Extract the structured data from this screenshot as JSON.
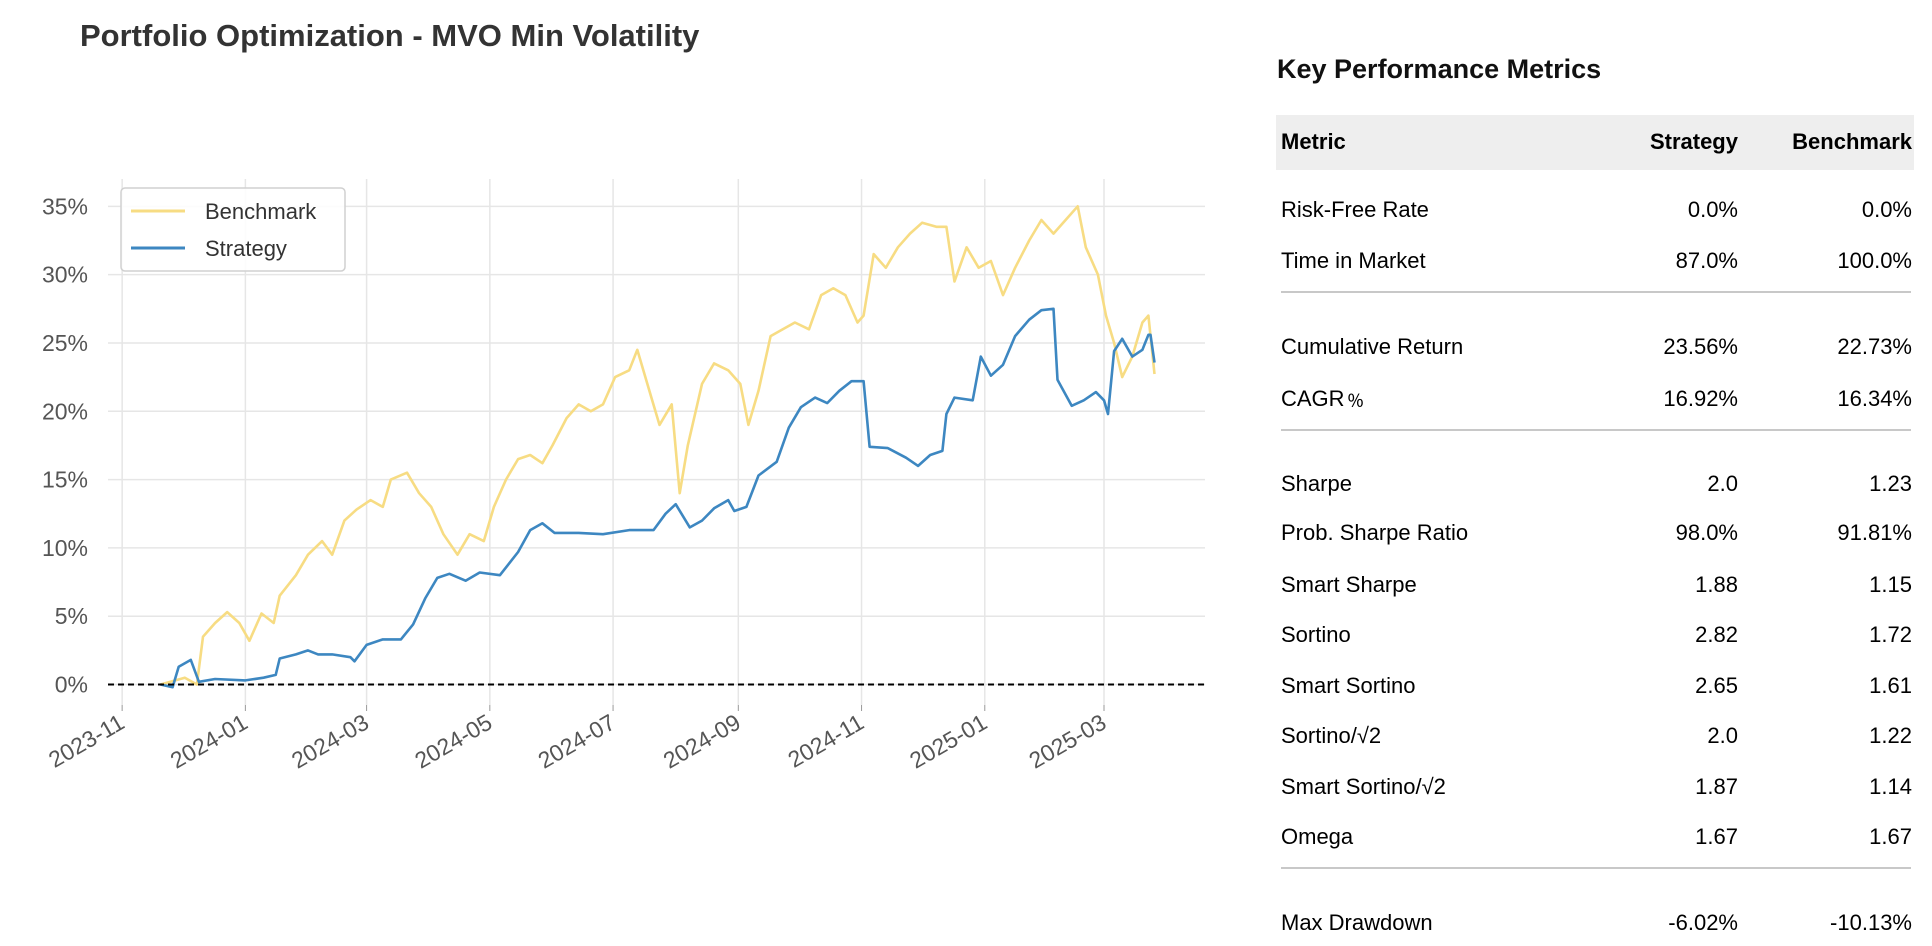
{
  "title": "Portfolio Optimization - MVO Min Volatility",
  "metrics": {
    "title": "Key Performance Metrics",
    "columns": [
      "Metric",
      "Strategy",
      "Benchmark"
    ],
    "groups": [
      [
        [
          "Risk-Free Rate",
          "0.0%",
          "0.0%"
        ],
        [
          "Time in Market",
          "87.0%",
          "100.0%"
        ]
      ],
      [
        [
          "Cumulative Return",
          "23.56%",
          "22.73%"
        ],
        [
          "CAGR﹪",
          "16.92%",
          "16.34%"
        ]
      ],
      [
        [
          "Sharpe",
          "2.0",
          "1.23"
        ],
        [
          "Prob. Sharpe Ratio",
          "98.0%",
          "91.81%"
        ],
        [
          "Smart Sharpe",
          "1.88",
          "1.15"
        ],
        [
          "Sortino",
          "2.82",
          "1.72"
        ],
        [
          "Smart Sortino",
          "2.65",
          "1.61"
        ],
        [
          "Sortino/√2",
          "2.0",
          "1.22"
        ],
        [
          "Smart Sortino/√2",
          "1.87",
          "1.14"
        ],
        [
          "Omega",
          "1.67",
          "1.67"
        ]
      ],
      [
        [
          "Max Drawdown",
          "-6.02%",
          "-10.13%"
        ]
      ]
    ]
  },
  "chart_data": {
    "type": "line",
    "title": "Portfolio Optimization - MVO Min Volatility",
    "xlabel": "",
    "ylabel": "",
    "x_ticks": [
      "2023-11",
      "2024-01",
      "2024-03",
      "2024-05",
      "2024-07",
      "2024-09",
      "2024-11",
      "2025-01",
      "2025-03"
    ],
    "y_ticks": [
      "0%",
      "5%",
      "10%",
      "15%",
      "20%",
      "25%",
      "30%",
      "35%"
    ],
    "y_tick_values": [
      0,
      5,
      10,
      15,
      20,
      25,
      30,
      35
    ],
    "xlim": [
      "2023-10-25",
      "2025-04-20"
    ],
    "ylim": [
      -1.5,
      37
    ],
    "grid": true,
    "legend": "top-left",
    "reference_line": {
      "y": 0,
      "style": "dashed",
      "color": "#000000"
    },
    "series": [
      {
        "name": "Benchmark",
        "color": "#f7dc83",
        "points": [
          [
            "2023-11-20",
            0
          ],
          [
            "2023-12-02",
            0.5
          ],
          [
            "2023-12-08",
            0
          ],
          [
            "2023-12-11",
            3.5
          ],
          [
            "2023-12-17",
            4.5
          ],
          [
            "2023-12-23",
            5.3
          ],
          [
            "2023-12-29",
            4.5
          ],
          [
            "2024-01-03",
            3.2
          ],
          [
            "2024-01-09",
            5.2
          ],
          [
            "2024-01-15",
            4.5
          ],
          [
            "2024-01-18",
            6.5
          ],
          [
            "2024-01-26",
            8
          ],
          [
            "2024-02-01",
            9.5
          ],
          [
            "2024-02-08",
            10.5
          ],
          [
            "2024-02-13",
            9.5
          ],
          [
            "2024-02-19",
            12
          ],
          [
            "2024-02-25",
            12.8
          ],
          [
            "2024-03-03",
            13.5
          ],
          [
            "2024-03-09",
            13
          ],
          [
            "2024-03-13",
            15
          ],
          [
            "2024-03-21",
            15.5
          ],
          [
            "2024-03-27",
            14
          ],
          [
            "2024-04-02",
            13
          ],
          [
            "2024-04-08",
            11
          ],
          [
            "2024-04-15",
            9.5
          ],
          [
            "2024-04-21",
            11
          ],
          [
            "2024-04-28",
            10.5
          ],
          [
            "2024-05-03",
            13
          ],
          [
            "2024-05-09",
            15
          ],
          [
            "2024-05-15",
            16.5
          ],
          [
            "2024-05-21",
            16.8
          ],
          [
            "2024-05-27",
            16.2
          ],
          [
            "2024-06-01",
            17.5
          ],
          [
            "2024-06-08",
            19.5
          ],
          [
            "2024-06-14",
            20.5
          ],
          [
            "2024-06-20",
            20
          ],
          [
            "2024-06-26",
            20.5
          ],
          [
            "2024-07-02",
            22.5
          ],
          [
            "2024-07-09",
            23
          ],
          [
            "2024-07-13",
            24.5
          ],
          [
            "2024-07-20",
            21
          ],
          [
            "2024-07-24",
            19
          ],
          [
            "2024-07-30",
            20.5
          ],
          [
            "2024-08-03",
            14
          ],
          [
            "2024-08-07",
            17.5
          ],
          [
            "2024-08-14",
            22
          ],
          [
            "2024-08-20",
            23.5
          ],
          [
            "2024-08-27",
            23
          ],
          [
            "2024-09-02",
            22
          ],
          [
            "2024-09-06",
            19
          ],
          [
            "2024-09-11",
            21.5
          ],
          [
            "2024-09-17",
            25.5
          ],
          [
            "2024-09-23",
            26
          ],
          [
            "2024-09-29",
            26.5
          ],
          [
            "2024-10-06",
            26
          ],
          [
            "2024-10-12",
            28.5
          ],
          [
            "2024-10-18",
            29
          ],
          [
            "2024-10-24",
            28.5
          ],
          [
            "2024-10-30",
            26.5
          ],
          [
            "2024-11-02",
            27
          ],
          [
            "2024-11-07",
            31.5
          ],
          [
            "2024-11-13",
            30.5
          ],
          [
            "2024-11-19",
            32
          ],
          [
            "2024-11-25",
            33
          ],
          [
            "2024-12-01",
            33.8
          ],
          [
            "2024-12-08",
            33.5
          ],
          [
            "2024-12-13",
            33.5
          ],
          [
            "2024-12-17",
            29.5
          ],
          [
            "2024-12-23",
            32
          ],
          [
            "2024-12-29",
            30.5
          ],
          [
            "2025-01-04",
            31
          ],
          [
            "2025-01-10",
            28.5
          ],
          [
            "2025-01-16",
            30.5
          ],
          [
            "2025-01-23",
            32.5
          ],
          [
            "2025-01-29",
            34
          ],
          [
            "2025-02-04",
            33
          ],
          [
            "2025-02-10",
            34
          ],
          [
            "2025-02-16",
            35
          ],
          [
            "2025-02-20",
            32
          ],
          [
            "2025-02-26",
            30
          ],
          [
            "2025-03-02",
            27
          ],
          [
            "2025-03-06",
            25
          ],
          [
            "2025-03-10",
            22.5
          ],
          [
            "2025-03-15",
            24
          ],
          [
            "2025-03-20",
            26.5
          ],
          [
            "2025-03-23",
            27
          ],
          [
            "2025-03-26",
            22.73
          ]
        ]
      },
      {
        "name": "Strategy",
        "color": "#3d87c1",
        "points": [
          [
            "2023-11-20",
            0
          ],
          [
            "2023-11-26",
            -0.2
          ],
          [
            "2023-11-29",
            1.3
          ],
          [
            "2023-12-05",
            1.8
          ],
          [
            "2023-12-09",
            0.2
          ],
          [
            "2023-12-17",
            0.4
          ],
          [
            "2024-01-01",
            0.3
          ],
          [
            "2024-01-10",
            0.5
          ],
          [
            "2024-01-16",
            0.7
          ],
          [
            "2024-01-18",
            1.9
          ],
          [
            "2024-01-26",
            2.2
          ],
          [
            "2024-02-01",
            2.5
          ],
          [
            "2024-02-06",
            2.2
          ],
          [
            "2024-02-13",
            2.2
          ],
          [
            "2024-02-22",
            2.0
          ],
          [
            "2024-02-24",
            1.7
          ],
          [
            "2024-03-01",
            2.9
          ],
          [
            "2024-03-09",
            3.3
          ],
          [
            "2024-03-18",
            3.3
          ],
          [
            "2024-03-24",
            4.4
          ],
          [
            "2024-03-30",
            6.3
          ],
          [
            "2024-04-05",
            7.8
          ],
          [
            "2024-04-11",
            8.1
          ],
          [
            "2024-04-19",
            7.6
          ],
          [
            "2024-04-26",
            8.2
          ],
          [
            "2024-05-06",
            8.0
          ],
          [
            "2024-05-15",
            9.7
          ],
          [
            "2024-05-21",
            11.3
          ],
          [
            "2024-05-27",
            11.8
          ],
          [
            "2024-06-02",
            11.1
          ],
          [
            "2024-06-14",
            11.1
          ],
          [
            "2024-06-26",
            11.0
          ],
          [
            "2024-07-09",
            11.3
          ],
          [
            "2024-07-21",
            11.3
          ],
          [
            "2024-07-27",
            12.5
          ],
          [
            "2024-08-01",
            13.2
          ],
          [
            "2024-08-08",
            11.5
          ],
          [
            "2024-08-14",
            12.0
          ],
          [
            "2024-08-20",
            12.9
          ],
          [
            "2024-08-27",
            13.5
          ],
          [
            "2024-08-30",
            12.7
          ],
          [
            "2024-09-05",
            13.0
          ],
          [
            "2024-09-11",
            15.3
          ],
          [
            "2024-09-20",
            16.3
          ],
          [
            "2024-09-26",
            18.8
          ],
          [
            "2024-10-02",
            20.3
          ],
          [
            "2024-10-09",
            21.0
          ],
          [
            "2024-10-15",
            20.6
          ],
          [
            "2024-10-21",
            21.5
          ],
          [
            "2024-10-27",
            22.2
          ],
          [
            "2024-11-02",
            22.2
          ],
          [
            "2024-11-05",
            17.4
          ],
          [
            "2024-11-14",
            17.3
          ],
          [
            "2024-11-23",
            16.6
          ],
          [
            "2024-11-29",
            16.0
          ],
          [
            "2024-12-05",
            16.8
          ],
          [
            "2024-12-11",
            17.1
          ],
          [
            "2024-12-13",
            19.8
          ],
          [
            "2024-12-17",
            21.0
          ],
          [
            "2024-12-26",
            20.8
          ],
          [
            "2024-12-30",
            24.0
          ],
          [
            "2025-01-04",
            22.6
          ],
          [
            "2025-01-10",
            23.4
          ],
          [
            "2025-01-16",
            25.5
          ],
          [
            "2025-01-23",
            26.7
          ],
          [
            "2025-01-29",
            27.4
          ],
          [
            "2025-02-04",
            27.5
          ],
          [
            "2025-02-06",
            22.3
          ],
          [
            "2025-02-13",
            20.4
          ],
          [
            "2025-02-19",
            20.8
          ],
          [
            "2025-02-25",
            21.4
          ],
          [
            "2025-03-01",
            20.8
          ],
          [
            "2025-03-03",
            19.8
          ],
          [
            "2025-03-06",
            24.4
          ],
          [
            "2025-03-10",
            25.3
          ],
          [
            "2025-03-15",
            24.0
          ],
          [
            "2025-03-20",
            24.5
          ],
          [
            "2025-03-23",
            25.6
          ],
          [
            "2025-03-24",
            25.6
          ],
          [
            "2025-03-26",
            23.56
          ]
        ]
      }
    ]
  }
}
